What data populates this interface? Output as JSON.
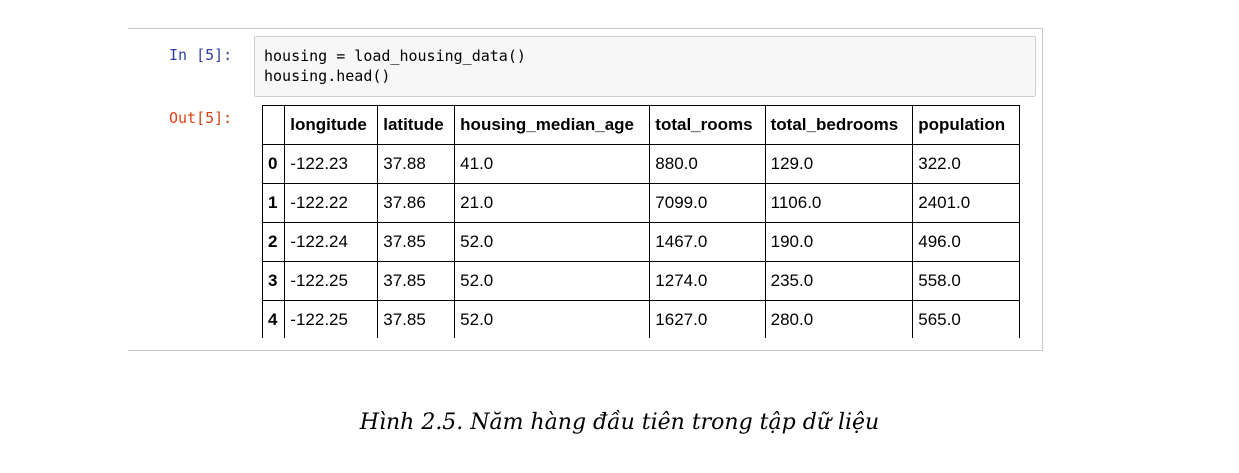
{
  "cell": {
    "in_prompt": "In [5]:",
    "out_prompt": "Out[5]:",
    "code_lines": [
      "housing = load_housing_data()",
      "housing.head()"
    ]
  },
  "table": {
    "columns": [
      "",
      "longitude",
      "latitude",
      "housing_median_age",
      "total_rooms",
      "total_bedrooms",
      "population"
    ],
    "rows": [
      [
        "0",
        "-122.23",
        "37.88",
        "41.0",
        "880.0",
        "129.0",
        "322.0"
      ],
      [
        "1",
        "-122.22",
        "37.86",
        "21.0",
        "7099.0",
        "1106.0",
        "2401.0"
      ],
      [
        "2",
        "-122.24",
        "37.85",
        "52.0",
        "1467.0",
        "190.0",
        "496.0"
      ],
      [
        "3",
        "-122.25",
        "37.85",
        "52.0",
        "1274.0",
        "235.0",
        "558.0"
      ],
      [
        "4",
        "-122.25",
        "37.85",
        "52.0",
        "1627.0",
        "280.0",
        "565.0"
      ]
    ]
  },
  "caption": "Hình 2.5. Năm hàng đầu tiên trong tập dữ liệu"
}
